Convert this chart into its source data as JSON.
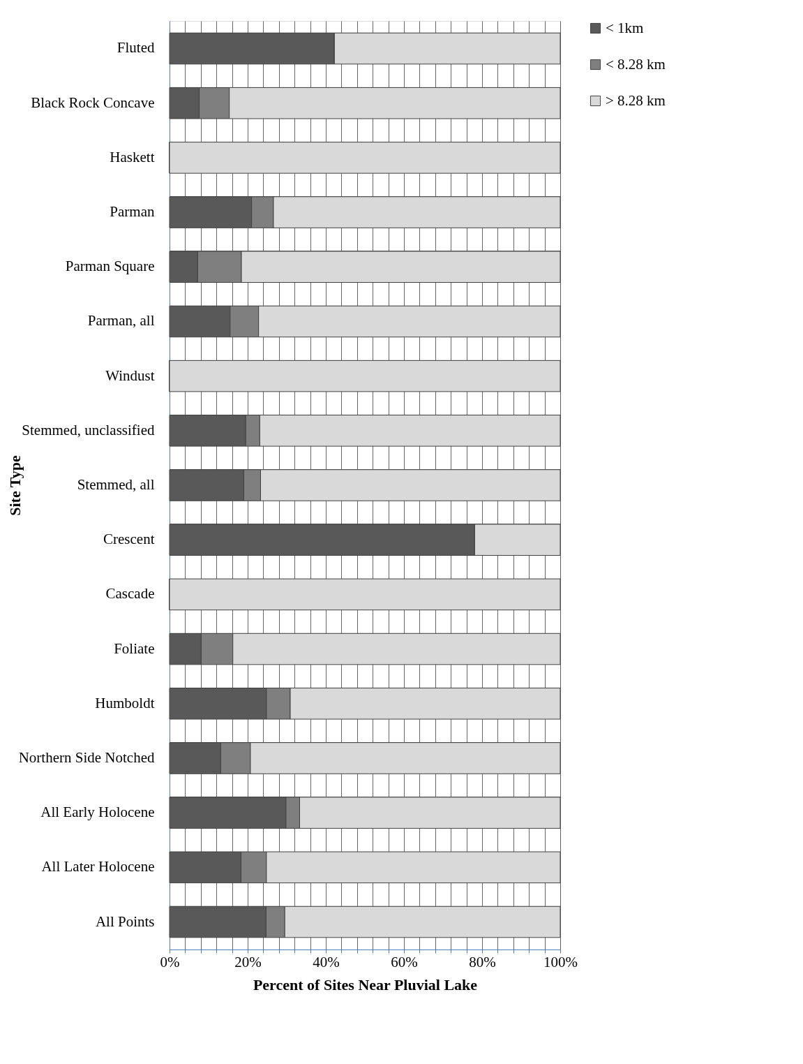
{
  "chart_data": {
    "type": "bar",
    "orientation": "horizontal",
    "stacked": true,
    "xlabel": "Percent of Sites Near Pluvial Lake",
    "ylabel": "Site Type",
    "categories": [
      "Fluted",
      "Black Rock Concave",
      "Haskett",
      "Parman",
      "Parman Square",
      "Parman, all",
      "Windust",
      "Stemmed, unclassified",
      "Stemmed, all",
      "Crescent",
      "Cascade",
      "Foliate",
      "Humboldt",
      "Northern Side Notched",
      "All Early Holocene",
      "All Later Holocene",
      "All Points"
    ],
    "series": [
      {
        "name": "< 1km",
        "color": "#595959",
        "values": [
          42.2,
          7.6,
          0,
          21.0,
          7.2,
          15.5,
          0,
          19.5,
          19.0,
          78.1,
          0,
          8.1,
          24.8,
          13.1,
          29.8,
          18.3,
          24.7
        ]
      },
      {
        "name": "< 8.28 km",
        "color": "#7f7f7f",
        "values": [
          0,
          7.7,
          0,
          5.6,
          11.2,
          7.3,
          0,
          3.6,
          4.3,
          0,
          0,
          8.1,
          6.1,
          7.6,
          3.5,
          6.5,
          4.8
        ]
      },
      {
        "name": "> 8.28 km",
        "color": "#d9d9d9",
        "values": [
          57.8,
          84.7,
          100,
          73.4,
          81.6,
          77.2,
          100,
          76.9,
          76.7,
          21.9,
          100,
          83.8,
          69.1,
          79.3,
          66.7,
          75.2,
          70.5
        ]
      }
    ],
    "xlim": [
      0,
      100
    ],
    "xticks": [
      {
        "value": 0,
        "label": "0%"
      },
      {
        "value": 4,
        "label": null
      },
      {
        "value": 8,
        "label": null
      },
      {
        "value": 12,
        "label": null
      },
      {
        "value": 16,
        "label": null
      },
      {
        "value": 20,
        "label": "20%"
      },
      {
        "value": 24,
        "label": null
      },
      {
        "value": 28,
        "label": null
      },
      {
        "value": 32,
        "label": null
      },
      {
        "value": 36,
        "label": null
      },
      {
        "value": 40,
        "label": "40%"
      },
      {
        "value": 44,
        "label": null
      },
      {
        "value": 48,
        "label": null
      },
      {
        "value": 52,
        "label": null
      },
      {
        "value": 56,
        "label": null
      },
      {
        "value": 60,
        "label": "60%"
      },
      {
        "value": 64,
        "label": null
      },
      {
        "value": 68,
        "label": null
      },
      {
        "value": 72,
        "label": null
      },
      {
        "value": 76,
        "label": null
      },
      {
        "value": 80,
        "label": "80%"
      },
      {
        "value": 84,
        "label": null
      },
      {
        "value": 88,
        "label": null
      },
      {
        "value": 92,
        "label": null
      },
      {
        "value": 96,
        "label": null
      },
      {
        "value": 100,
        "label": "100%"
      }
    ],
    "grid": true,
    "legend": "right"
  }
}
